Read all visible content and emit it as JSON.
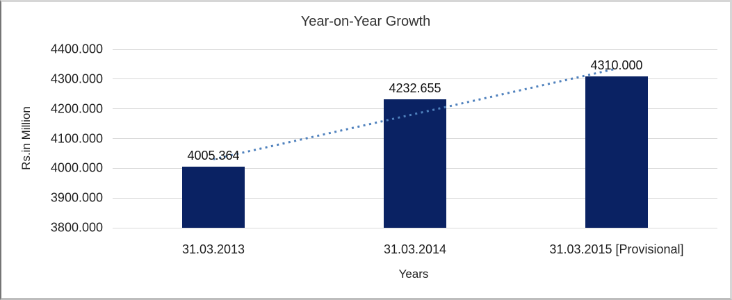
{
  "chart_data": {
    "type": "bar",
    "title": "Year-on-Year Growth",
    "xlabel": "Years",
    "ylabel": "Rs.in Million",
    "categories": [
      "31.03.2013",
      "31.03.2014",
      "31.03.2015 [Provisional]"
    ],
    "values": [
      4005.364,
      4232.655,
      4310.0
    ],
    "data_labels": [
      "4005.364",
      "4232.655",
      "4310.000"
    ],
    "ylim": [
      3800,
      4400
    ],
    "yticks": [
      {
        "value": 3800,
        "label": "3800.000"
      },
      {
        "value": 3900,
        "label": "3900.000"
      },
      {
        "value": 4000,
        "label": "4000.000"
      },
      {
        "value": 4100,
        "label": "4100.000"
      },
      {
        "value": 4200,
        "label": "4200.000"
      },
      {
        "value": 4300,
        "label": "4300.000"
      },
      {
        "value": 4400,
        "label": "4400.000"
      }
    ],
    "grid": true,
    "legend": false,
    "bar_color": "#0a2263",
    "gridline_color": "#d9d9d9",
    "trendline": {
      "type": "linear",
      "style": "dotted",
      "color": "#4f81bd",
      "start_value": 4030.5,
      "end_value": 4335.0
    }
  }
}
